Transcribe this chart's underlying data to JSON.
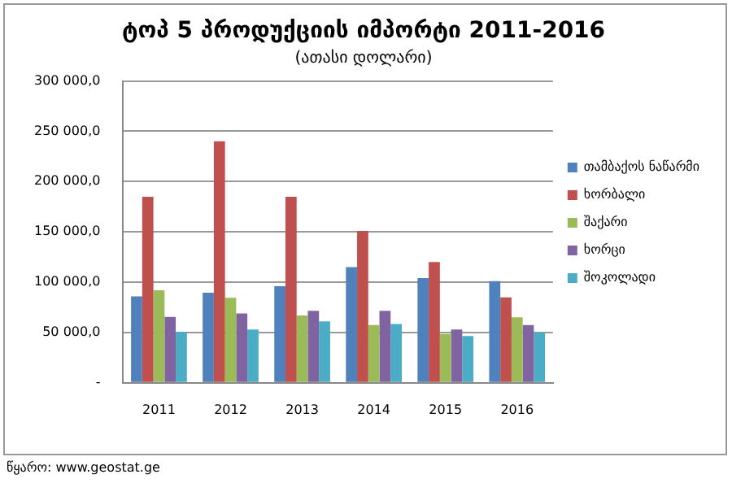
{
  "chart_data": {
    "type": "bar",
    "title": "ტოპ 5 პროდუქციის იმპორტი 2011-2016",
    "subtitle": "(ათასი დოლარი)",
    "categories": [
      "2011",
      "2012",
      "2013",
      "2014",
      "2015",
      "2016"
    ],
    "series": [
      {
        "name": "თამბაქოს ნაწარმი",
        "color": "#4f81bd",
        "values": [
          86000,
          89500,
          96000,
          115000,
          104000,
          101000
        ]
      },
      {
        "name": "ხორბალი",
        "color": "#c0504d",
        "values": [
          185000,
          240000,
          185000,
          151000,
          120000,
          85000
        ]
      },
      {
        "name": "შაქარი",
        "color": "#9bbb59",
        "values": [
          92000,
          84500,
          67000,
          57500,
          48500,
          65000
        ]
      },
      {
        "name": "ხორცი",
        "color": "#8064a2",
        "values": [
          65500,
          69000,
          71500,
          71500,
          53000,
          57500
        ]
      },
      {
        "name": "შოკოლადი",
        "color": "#4bacc6",
        "values": [
          50500,
          53000,
          61000,
          58500,
          46500,
          50000
        ]
      }
    ],
    "ylim": [
      0,
      300000
    ],
    "yticks": [
      {
        "value": 0,
        "label": "-"
      },
      {
        "value": 50000,
        "label": "50 000,0"
      },
      {
        "value": 100000,
        "label": "100 000,0"
      },
      {
        "value": 150000,
        "label": "150 000,0"
      },
      {
        "value": 200000,
        "label": "200 000,0"
      },
      {
        "value": 250000,
        "label": "250 000,0"
      },
      {
        "value": 300000,
        "label": "300 000,0"
      }
    ],
    "grid": "y",
    "legend": "right",
    "annotations": [
      "წყარო: www.geostat.ge"
    ]
  }
}
